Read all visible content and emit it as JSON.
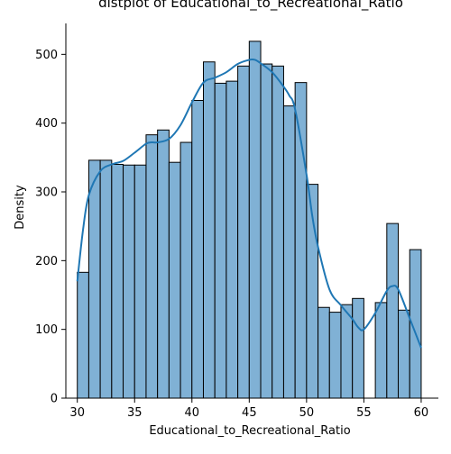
{
  "chart_data": {
    "type": "histogram",
    "title": "distplot of Educational_to_Recreational_Ratio",
    "xlabel": "Educational_to_Recreational_Ratio",
    "ylabel": "Density",
    "xlim": [
      29,
      61.5
    ],
    "ylim": [
      0,
      545
    ],
    "xticks": [
      30,
      35,
      40,
      45,
      50,
      55,
      60
    ],
    "yticks": [
      0,
      100,
      200,
      300,
      400,
      500
    ],
    "bin_start": 30,
    "bin_width": 1.0,
    "bins": [
      {
        "x0": 30,
        "x1": 31,
        "value": 183
      },
      {
        "x0": 31,
        "x1": 32,
        "value": 346
      },
      {
        "x0": 32,
        "x1": 33,
        "value": 346
      },
      {
        "x0": 33,
        "x1": 34,
        "value": 340
      },
      {
        "x0": 34,
        "x1": 35,
        "value": 339
      },
      {
        "x0": 35,
        "x1": 36,
        "value": 339
      },
      {
        "x0": 36,
        "x1": 37,
        "value": 383
      },
      {
        "x0": 37,
        "x1": 38,
        "value": 390
      },
      {
        "x0": 38,
        "x1": 39,
        "value": 343
      },
      {
        "x0": 39,
        "x1": 40,
        "value": 372
      },
      {
        "x0": 40,
        "x1": 41,
        "value": 433
      },
      {
        "x0": 41,
        "x1": 42,
        "value": 489
      },
      {
        "x0": 42,
        "x1": 43,
        "value": 458
      },
      {
        "x0": 43,
        "x1": 44,
        "value": 461
      },
      {
        "x0": 44,
        "x1": 45,
        "value": 483
      },
      {
        "x0": 45,
        "x1": 46,
        "value": 519
      },
      {
        "x0": 46,
        "x1": 47,
        "value": 486
      },
      {
        "x0": 47,
        "x1": 48,
        "value": 483
      },
      {
        "x0": 48,
        "x1": 49,
        "value": 425
      },
      {
        "x0": 49,
        "x1": 50,
        "value": 459
      },
      {
        "x0": 50,
        "x1": 51,
        "value": 311
      },
      {
        "x0": 51,
        "x1": 52,
        "value": 132
      },
      {
        "x0": 52,
        "x1": 53,
        "value": 125
      },
      {
        "x0": 53,
        "x1": 54,
        "value": 136
      },
      {
        "x0": 54,
        "x1": 55,
        "value": 145
      },
      {
        "x0": 55,
        "x1": 56,
        "value": 0
      },
      {
        "x0": 56,
        "x1": 57,
        "value": 139
      },
      {
        "x0": 57,
        "x1": 58,
        "value": 254
      },
      {
        "x0": 58,
        "x1": 59,
        "value": 128
      },
      {
        "x0": 59,
        "x1": 60,
        "value": 216
      }
    ],
    "kde": {
      "x": [
        30,
        30.5,
        31,
        32,
        33,
        34,
        35,
        36,
        36.5,
        37,
        38,
        39,
        40,
        41,
        42,
        43,
        44,
        45,
        45.5,
        46,
        47,
        48,
        48.5,
        49,
        50,
        50.5,
        51,
        52,
        53,
        54,
        54.5,
        55,
        56,
        57,
        57.5,
        58,
        59,
        60
      ],
      "y": [
        170,
        245,
        295,
        330,
        340,
        345,
        357,
        370,
        372,
        372,
        377,
        397,
        430,
        459,
        466,
        474,
        486,
        492,
        492,
        487,
        474,
        453,
        440,
        420,
        325,
        265,
        220,
        158,
        135,
        115,
        103,
        100,
        124,
        156,
        163,
        158,
        116,
        73
      ]
    },
    "colors": {
      "bar_fill": "#80b1d5",
      "bar_edge": "#000000",
      "kde_line": "#1f77b4",
      "axis": "#000000"
    },
    "grid": false,
    "legend": "none"
  }
}
